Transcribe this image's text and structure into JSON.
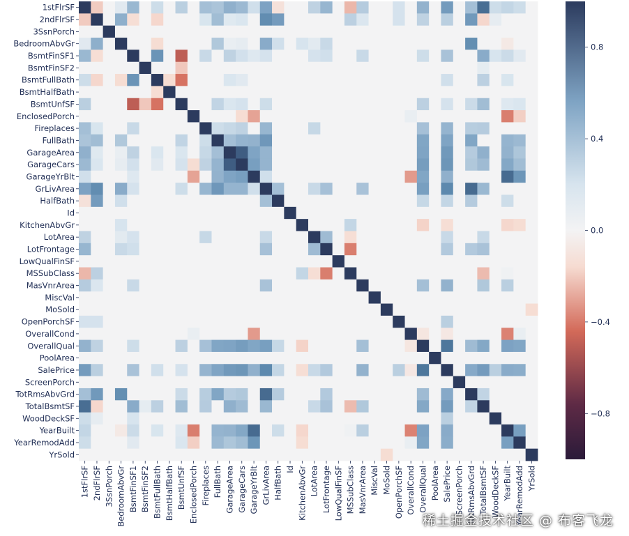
{
  "chart_data": {
    "type": "heatmap",
    "title": "",
    "labels": [
      "1stFlrSF",
      "2ndFlrSF",
      "3SsnPorch",
      "BedroomAbvGr",
      "BsmtFinSF1",
      "BsmtFinSF2",
      "BsmtFullBath",
      "BsmtHalfBath",
      "BsmtUnfSF",
      "EnclosedPorch",
      "Fireplaces",
      "FullBath",
      "GarageArea",
      "GarageCars",
      "GarageYrBlt",
      "GrLivArea",
      "HalfBath",
      "Id",
      "KitchenAbvGr",
      "LotArea",
      "LotFrontage",
      "LowQualFinSF",
      "MSSubClass",
      "MasVnrArea",
      "MiscVal",
      "MoSold",
      "OpenPorchSF",
      "OverallCond",
      "OverallQual",
      "PoolArea",
      "SalePrice",
      "ScreenPorch",
      "TotRmsAbvGrd",
      "TotalBsmtSF",
      "WoodDeckSF",
      "YearBuilt",
      "YearRemodAdd",
      "YrSold"
    ],
    "correlations": [
      [
        "1stFlrSF",
        "2ndFlrSF",
        -0.2
      ],
      [
        "1stFlrSF",
        "BedroomAbvGr",
        0.13
      ],
      [
        "1stFlrSF",
        "BsmtFinSF1",
        0.45
      ],
      [
        "1stFlrSF",
        "BsmtFullBath",
        0.24
      ],
      [
        "1stFlrSF",
        "BsmtUnfSF",
        0.32
      ],
      [
        "1stFlrSF",
        "Fireplaces",
        0.41
      ],
      [
        "1stFlrSF",
        "FullBath",
        0.38
      ],
      [
        "1stFlrSF",
        "GarageArea",
        0.49
      ],
      [
        "1stFlrSF",
        "GarageCars",
        0.44
      ],
      [
        "1stFlrSF",
        "GarageYrBlt",
        0.23
      ],
      [
        "1stFlrSF",
        "GrLivArea",
        0.57
      ],
      [
        "1stFlrSF",
        "HalfBath",
        -0.12
      ],
      [
        "1stFlrSF",
        "LotArea",
        0.3
      ],
      [
        "1stFlrSF",
        "LotFrontage",
        0.46
      ],
      [
        "1stFlrSF",
        "MSSubClass",
        -0.25
      ],
      [
        "1stFlrSF",
        "MasVnrArea",
        0.34
      ],
      [
        "1stFlrSF",
        "OpenPorchSF",
        0.21
      ],
      [
        "1stFlrSF",
        "OverallQual",
        0.48
      ],
      [
        "1stFlrSF",
        "SalePrice",
        0.61
      ],
      [
        "1stFlrSF",
        "TotRmsAbvGrd",
        0.41
      ],
      [
        "1stFlrSF",
        "TotalBsmtSF",
        0.82
      ],
      [
        "1stFlrSF",
        "WoodDeckSF",
        0.24
      ],
      [
        "1stFlrSF",
        "YearBuilt",
        0.28
      ],
      [
        "1stFlrSF",
        "YearRemodAdd",
        0.24
      ],
      [
        "2ndFlrSF",
        "BedroomAbvGr",
        0.5
      ],
      [
        "2ndFlrSF",
        "BsmtFinSF1",
        -0.14
      ],
      [
        "2ndFlrSF",
        "BsmtFullBath",
        -0.17
      ],
      [
        "2ndFlrSF",
        "BsmtUnfSF",
        0.0
      ],
      [
        "2ndFlrSF",
        "Fireplaces",
        0.19
      ],
      [
        "2ndFlrSF",
        "FullBath",
        0.42
      ],
      [
        "2ndFlrSF",
        "GarageArea",
        0.14
      ],
      [
        "2ndFlrSF",
        "GarageCars",
        0.18
      ],
      [
        "2ndFlrSF",
        "GrLivArea",
        0.69
      ],
      [
        "2ndFlrSF",
        "HalfBath",
        0.61
      ],
      [
        "2ndFlrSF",
        "MSSubClass",
        0.31
      ],
      [
        "2ndFlrSF",
        "MasVnrArea",
        0.17
      ],
      [
        "2ndFlrSF",
        "OpenPorchSF",
        0.21
      ],
      [
        "2ndFlrSF",
        "OverallQual",
        0.3
      ],
      [
        "2ndFlrSF",
        "SalePrice",
        0.32
      ],
      [
        "2ndFlrSF",
        "TotRmsAbvGrd",
        0.62
      ],
      [
        "2ndFlrSF",
        "TotalBsmtSF",
        -0.17
      ],
      [
        "2ndFlrSF",
        "WoodDeckSF",
        0.09
      ],
      [
        "BedroomAbvGr",
        "BsmtFullBath",
        -0.15
      ],
      [
        "BedroomAbvGr",
        "FullBath",
        0.36
      ],
      [
        "BedroomAbvGr",
        "GarageArea",
        0.07
      ],
      [
        "BedroomAbvGr",
        "GarageCars",
        0.09
      ],
      [
        "BedroomAbvGr",
        "GrLivArea",
        0.52
      ],
      [
        "BedroomAbvGr",
        "HalfBath",
        0.23
      ],
      [
        "BedroomAbvGr",
        "KitchenAbvGr",
        0.2
      ],
      [
        "BedroomAbvGr",
        "LotArea",
        0.12
      ],
      [
        "BedroomAbvGr",
        "LotFrontage",
        0.26
      ],
      [
        "BedroomAbvGr",
        "TotRmsAbvGrd",
        0.68
      ],
      [
        "BedroomAbvGr",
        "YearBuilt",
        -0.07
      ],
      [
        "BsmtFinSF1",
        "BsmtFullBath",
        0.65
      ],
      [
        "BsmtFinSF1",
        "BsmtUnfSF",
        -0.5
      ],
      [
        "BsmtFinSF1",
        "Fireplaces",
        0.26
      ],
      [
        "BsmtFinSF1",
        "GarageArea",
        0.3
      ],
      [
        "BsmtFinSF1",
        "GarageCars",
        0.22
      ],
      [
        "BsmtFinSF1",
        "GarageYrBlt",
        0.15
      ],
      [
        "BsmtFinSF1",
        "GrLivArea",
        0.21
      ],
      [
        "BsmtFinSF1",
        "LotArea",
        0.21
      ],
      [
        "BsmtFinSF1",
        "LotFrontage",
        0.23
      ],
      [
        "BsmtFinSF1",
        "MasVnrArea",
        0.26
      ],
      [
        "BsmtFinSF1",
        "OverallQual",
        0.24
      ],
      [
        "BsmtFinSF1",
        "SalePrice",
        0.39
      ],
      [
        "BsmtFinSF1",
        "TotalBsmtSF",
        0.52
      ],
      [
        "BsmtFinSF1",
        "WoodDeckSF",
        0.2
      ],
      [
        "BsmtFinSF1",
        "YearBuilt",
        0.25
      ],
      [
        "BsmtFinSF1",
        "YearRemodAdd",
        0.13
      ],
      [
        "BsmtFinSF2",
        "BsmtUnfSF",
        -0.21
      ],
      [
        "BsmtFinSF2",
        "TotalBsmtSF",
        0.1
      ],
      [
        "BsmtFullBath",
        "BsmtHalfBath",
        -0.15
      ],
      [
        "BsmtFullBath",
        "BsmtUnfSF",
        -0.42
      ],
      [
        "BsmtFullBath",
        "GarageArea",
        0.18
      ],
      [
        "BsmtFullBath",
        "GarageCars",
        0.13
      ],
      [
        "BsmtFullBath",
        "SalePrice",
        0.23
      ],
      [
        "BsmtFullBath",
        "TotalBsmtSF",
        0.31
      ],
      [
        "BsmtFullBath",
        "YearBuilt",
        0.19
      ],
      [
        "BsmtUnfSF",
        "EnclosedPorch",
        0.0
      ],
      [
        "BsmtUnfSF",
        "FullBath",
        0.29
      ],
      [
        "BsmtUnfSF",
        "GarageArea",
        0.18
      ],
      [
        "BsmtUnfSF",
        "GarageCars",
        0.21
      ],
      [
        "BsmtUnfSF",
        "GrLivArea",
        0.24
      ],
      [
        "BsmtUnfSF",
        "OverallQual",
        0.31
      ],
      [
        "BsmtUnfSF",
        "SalePrice",
        0.21
      ],
      [
        "BsmtUnfSF",
        "TotRmsAbvGrd",
        0.25
      ],
      [
        "BsmtUnfSF",
        "TotalBsmtSF",
        0.42
      ],
      [
        "BsmtUnfSF",
        "YearBuilt",
        0.15
      ],
      [
        "BsmtUnfSF",
        "YearRemodAdd",
        0.18
      ],
      [
        "EnclosedPorch",
        "GarageYrBlt",
        -0.3
      ],
      [
        "EnclosedPorch",
        "OverallCond",
        0.07
      ],
      [
        "EnclosedPorch",
        "YearBuilt",
        -0.39
      ],
      [
        "EnclosedPorch",
        "YearRemodAdd",
        -0.19
      ],
      [
        "EnclosedPorch",
        "GarageCars",
        -0.15
      ],
      [
        "Fireplaces",
        "FullBath",
        0.24
      ],
      [
        "Fireplaces",
        "GarageArea",
        0.27
      ],
      [
        "Fireplaces",
        "GarageCars",
        0.3
      ],
      [
        "Fireplaces",
        "GrLivArea",
        0.46
      ],
      [
        "Fireplaces",
        "LotArea",
        0.27
      ],
      [
        "Fireplaces",
        "OverallQual",
        0.4
      ],
      [
        "Fireplaces",
        "SalePrice",
        0.47
      ],
      [
        "Fireplaces",
        "TotRmsAbvGrd",
        0.33
      ],
      [
        "Fireplaces",
        "TotalBsmtSF",
        0.34
      ],
      [
        "FullBath",
        "GarageArea",
        0.41
      ],
      [
        "FullBath",
        "GarageCars",
        0.47
      ],
      [
        "FullBath",
        "GarageYrBlt",
        0.48
      ],
      [
        "FullBath",
        "GrLivArea",
        0.63
      ],
      [
        "FullBath",
        "OverallQual",
        0.55
      ],
      [
        "FullBath",
        "SalePrice",
        0.56
      ],
      [
        "FullBath",
        "TotRmsAbvGrd",
        0.55
      ],
      [
        "FullBath",
        "YearBuilt",
        0.47
      ],
      [
        "FullBath",
        "YearRemodAdd",
        0.44
      ],
      [
        "GarageArea",
        "GarageCars",
        0.88
      ],
      [
        "GarageArea",
        "GarageYrBlt",
        0.56
      ],
      [
        "GarageArea",
        "GrLivArea",
        0.47
      ],
      [
        "GarageArea",
        "OverallQual",
        0.56
      ],
      [
        "GarageArea",
        "SalePrice",
        0.62
      ],
      [
        "GarageArea",
        "TotRmsAbvGrd",
        0.34
      ],
      [
        "GarageArea",
        "TotalBsmtSF",
        0.49
      ],
      [
        "GarageArea",
        "YearBuilt",
        0.48
      ],
      [
        "GarageArea",
        "YearRemodAdd",
        0.37
      ],
      [
        "GarageCars",
        "GarageYrBlt",
        0.59
      ],
      [
        "GarageCars",
        "GrLivArea",
        0.47
      ],
      [
        "GarageCars",
        "OverallQual",
        0.6
      ],
      [
        "GarageCars",
        "SalePrice",
        0.64
      ],
      [
        "GarageCars",
        "TotRmsAbvGrd",
        0.36
      ],
      [
        "GarageCars",
        "TotalBsmtSF",
        0.43
      ],
      [
        "GarageCars",
        "YearBuilt",
        0.54
      ],
      [
        "GarageCars",
        "YearRemodAdd",
        0.42
      ],
      [
        "GarageYrBlt",
        "GrLivArea",
        0.23
      ],
      [
        "GarageYrBlt",
        "OverallCond",
        -0.32
      ],
      [
        "GarageYrBlt",
        "OverallQual",
        0.55
      ],
      [
        "GarageYrBlt",
        "SalePrice",
        0.49
      ],
      [
        "GarageYrBlt",
        "YearBuilt",
        0.83
      ],
      [
        "GarageYrBlt",
        "YearRemodAdd",
        0.64
      ],
      [
        "GrLivArea",
        "HalfBath",
        0.41
      ],
      [
        "GrLivArea",
        "OverallQual",
        0.59
      ],
      [
        "GrLivArea",
        "SalePrice",
        0.71
      ],
      [
        "GrLivArea",
        "TotRmsAbvGrd",
        0.83
      ],
      [
        "GrLivArea",
        "TotalBsmtSF",
        0.45
      ],
      [
        "GrLivArea",
        "LotArea",
        0.26
      ],
      [
        "GrLivArea",
        "LotFrontage",
        0.4
      ],
      [
        "GrLivArea",
        "MasVnrArea",
        0.39
      ],
      [
        "HalfBath",
        "OverallQual",
        0.27
      ],
      [
        "HalfBath",
        "SalePrice",
        0.28
      ],
      [
        "HalfBath",
        "TotRmsAbvGrd",
        0.34
      ],
      [
        "HalfBath",
        "YearBuilt",
        0.24
      ],
      [
        "KitchenAbvGr",
        "OverallQual",
        -0.18
      ],
      [
        "KitchenAbvGr",
        "SalePrice",
        -0.14
      ],
      [
        "KitchenAbvGr",
        "YearBuilt",
        -0.17
      ],
      [
        "KitchenAbvGr",
        "YearRemodAdd",
        -0.15
      ],
      [
        "KitchenAbvGr",
        "MSSubClass",
        0.28
      ],
      [
        "LotArea",
        "LotFrontage",
        0.43
      ],
      [
        "LotArea",
        "MSSubClass",
        -0.14
      ],
      [
        "LotArea",
        "SalePrice",
        0.26
      ],
      [
        "LotArea",
        "TotalBsmtSF",
        0.26
      ],
      [
        "LotFrontage",
        "MSSubClass",
        -0.39
      ],
      [
        "LotFrontage",
        "SalePrice",
        0.35
      ],
      [
        "LotFrontage",
        "TotalBsmtSF",
        0.39
      ],
      [
        "LotFrontage",
        "TotRmsAbvGrd",
        0.35
      ],
      [
        "MSSubClass",
        "TotalBsmtSF",
        -0.24
      ],
      [
        "MSSubClass",
        "YearBuilt",
        0.03
      ],
      [
        "MasVnrArea",
        "OverallQual",
        0.41
      ],
      [
        "MasVnrArea",
        "SalePrice",
        0.48
      ],
      [
        "MasVnrArea",
        "YearBuilt",
        0.32
      ],
      [
        "MasVnrArea",
        "TotalBsmtSF",
        0.36
      ],
      [
        "OverallCond",
        "OverallQual",
        -0.09
      ],
      [
        "OverallCond",
        "YearBuilt",
        -0.38
      ],
      [
        "OverallCond",
        "YearRemodAdd",
        0.07
      ],
      [
        "OverallCond",
        "SalePrice",
        -0.08
      ],
      [
        "OverallQual",
        "SalePrice",
        0.79
      ],
      [
        "OverallQual",
        "TotRmsAbvGrd",
        0.43
      ],
      [
        "OverallQual",
        "TotalBsmtSF",
        0.54
      ],
      [
        "OverallQual",
        "YearBuilt",
        0.57
      ],
      [
        "OverallQual",
        "YearRemodAdd",
        0.55
      ],
      [
        "SalePrice",
        "TotRmsAbvGrd",
        0.53
      ],
      [
        "SalePrice",
        "TotalBsmtSF",
        0.61
      ],
      [
        "SalePrice",
        "YearBuilt",
        0.52
      ],
      [
        "SalePrice",
        "YearRemodAdd",
        0.51
      ],
      [
        "SalePrice",
        "WoodDeckSF",
        0.32
      ],
      [
        "SalePrice",
        "OpenPorchSF",
        0.32
      ],
      [
        "TotRmsAbvGrd",
        "TotalBsmtSF",
        0.29
      ],
      [
        "YearBuilt",
        "YearRemodAdd",
        0.59
      ],
      [
        "MoSold",
        "YrSold",
        -0.15
      ]
    ],
    "colorbar": {
      "vmin": -1,
      "vmax": 1,
      "ticks": [
        0.8,
        0.4,
        0.0,
        -0.4,
        -0.8
      ],
      "tick_labels": [
        "0.8",
        "0.4",
        "0.0",
        "−0.4",
        "−0.8"
      ]
    },
    "colors": {
      "neg_dark": "#2b1b3a",
      "neg_mid": "#d36a59",
      "neg_light": "#f6dbd1",
      "center": "#f3f3f4",
      "pos_light": "#d7e4ee",
      "pos_mid": "#5482a8",
      "pos_dark": "#2c3b5e"
    }
  },
  "watermark": "稀土掘金技术社区 @ 布客飞龙"
}
